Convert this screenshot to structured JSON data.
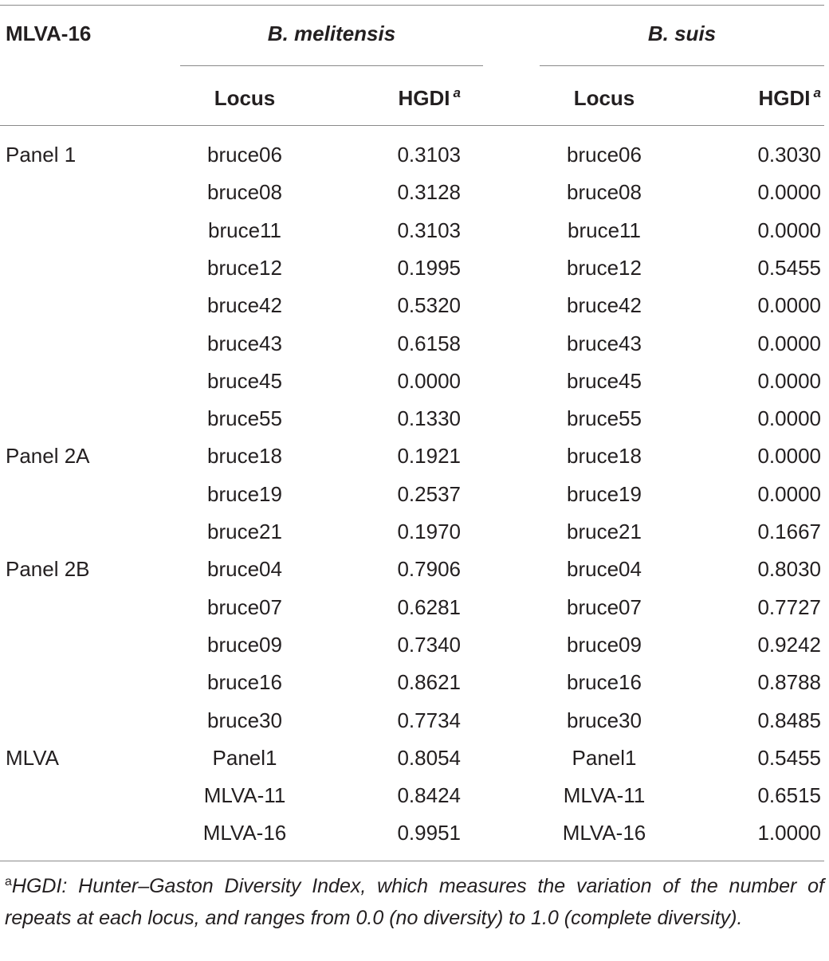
{
  "table": {
    "corner_header": "MLVA-16",
    "species": [
      {
        "name": "B. melitensis"
      },
      {
        "name": "B. suis"
      }
    ],
    "column_headers": {
      "locus": "Locus",
      "hgdi": "HGDI",
      "hgdi_footnote_mark": "a"
    },
    "rows": [
      {
        "group": "Panel 1",
        "mel_locus": "bruce06",
        "mel_hgdi": "0.3103",
        "suis_locus": "bruce06",
        "suis_hgdi": "0.3030"
      },
      {
        "group": "",
        "mel_locus": "bruce08",
        "mel_hgdi": "0.3128",
        "suis_locus": "bruce08",
        "suis_hgdi": "0.0000"
      },
      {
        "group": "",
        "mel_locus": "bruce11",
        "mel_hgdi": "0.3103",
        "suis_locus": "bruce11",
        "suis_hgdi": "0.0000"
      },
      {
        "group": "",
        "mel_locus": "bruce12",
        "mel_hgdi": "0.1995",
        "suis_locus": "bruce12",
        "suis_hgdi": "0.5455"
      },
      {
        "group": "",
        "mel_locus": "bruce42",
        "mel_hgdi": "0.5320",
        "suis_locus": "bruce42",
        "suis_hgdi": "0.0000"
      },
      {
        "group": "",
        "mel_locus": "bruce43",
        "mel_hgdi": "0.6158",
        "suis_locus": "bruce43",
        "suis_hgdi": "0.0000"
      },
      {
        "group": "",
        "mel_locus": "bruce45",
        "mel_hgdi": "0.0000",
        "suis_locus": "bruce45",
        "suis_hgdi": "0.0000"
      },
      {
        "group": "",
        "mel_locus": "bruce55",
        "mel_hgdi": "0.1330",
        "suis_locus": "bruce55",
        "suis_hgdi": "0.0000"
      },
      {
        "group": "Panel 2A",
        "mel_locus": "bruce18",
        "mel_hgdi": "0.1921",
        "suis_locus": "bruce18",
        "suis_hgdi": "0.0000"
      },
      {
        "group": "",
        "mel_locus": "bruce19",
        "mel_hgdi": "0.2537",
        "suis_locus": "bruce19",
        "suis_hgdi": "0.0000"
      },
      {
        "group": "",
        "mel_locus": "bruce21",
        "mel_hgdi": "0.1970",
        "suis_locus": "bruce21",
        "suis_hgdi": "0.1667"
      },
      {
        "group": "Panel 2B",
        "mel_locus": "bruce04",
        "mel_hgdi": "0.7906",
        "suis_locus": "bruce04",
        "suis_hgdi": "0.8030"
      },
      {
        "group": "",
        "mel_locus": "bruce07",
        "mel_hgdi": "0.6281",
        "suis_locus": "bruce07",
        "suis_hgdi": "0.7727"
      },
      {
        "group": "",
        "mel_locus": "bruce09",
        "mel_hgdi": "0.7340",
        "suis_locus": "bruce09",
        "suis_hgdi": "0.9242"
      },
      {
        "group": "",
        "mel_locus": "bruce16",
        "mel_hgdi": "0.8621",
        "suis_locus": "bruce16",
        "suis_hgdi": "0.8788"
      },
      {
        "group": "",
        "mel_locus": "bruce30",
        "mel_hgdi": "0.7734",
        "suis_locus": "bruce30",
        "suis_hgdi": "0.8485"
      },
      {
        "group": "MLVA",
        "mel_locus": "Panel1",
        "mel_hgdi": "0.8054",
        "suis_locus": "Panel1",
        "suis_hgdi": "0.5455"
      },
      {
        "group": "",
        "mel_locus": "MLVA-11",
        "mel_hgdi": "0.8424",
        "suis_locus": "MLVA-11",
        "suis_hgdi": "0.6515"
      },
      {
        "group": "",
        "mel_locus": "MLVA-16",
        "mel_hgdi": "0.9951",
        "suis_locus": "MLVA-16",
        "suis_hgdi": "1.0000"
      }
    ]
  },
  "footnote": {
    "mark": "a",
    "text": "HGDI: Hunter–Gaston Diversity Index, which measures the variation of the number of repeats at each locus, and ranges from 0.0 (no diversity) to 1.0 (complete diversity)."
  }
}
